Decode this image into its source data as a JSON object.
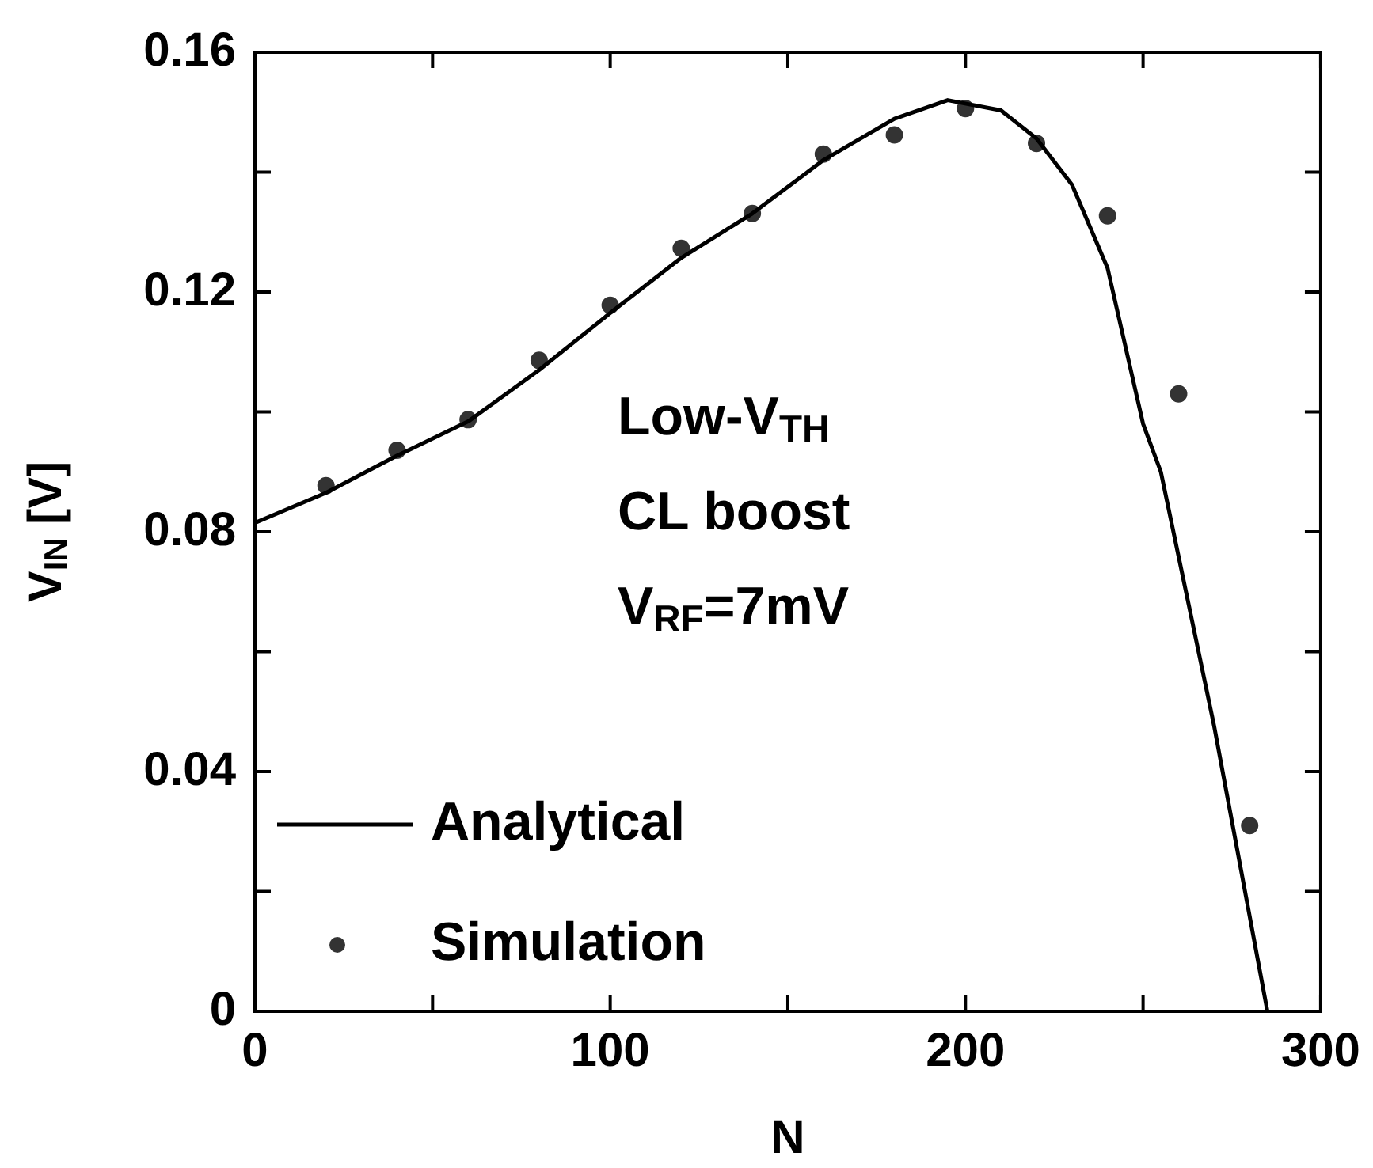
{
  "chart_data": {
    "type": "scatter",
    "xlabel": "N",
    "ylabel": "V$_{IN}$ [V]",
    "annotations": [
      "Low-V$_{TH}$",
      "CL boost",
      "V$_{RF}$=7mV"
    ],
    "xlim": [
      0,
      300
    ],
    "xticks": [
      0,
      {
        "value": 50,
        "label": null
      },
      100,
      {
        "value": 150,
        "label": null
      },
      200,
      {
        "value": 250,
        "label": null
      },
      300
    ],
    "ylim": [
      0,
      0.16
    ],
    "yticks": [
      0,
      {
        "value": 0.02,
        "label": null
      },
      0.04,
      {
        "value": 0.06,
        "label": null
      },
      0.08,
      {
        "value": 0.1,
        "label": null
      },
      0.12,
      {
        "value": 0.14,
        "label": null
      },
      0.16
    ],
    "grid": false,
    "legend": "bottom left",
    "series": [
      {
        "name": "Analytical",
        "type": "line",
        "color": "#000000",
        "marker": "none",
        "line_style": "solid",
        "x": [
          0,
          20,
          40,
          60,
          80,
          100,
          120,
          140,
          160,
          180,
          195,
          210,
          220,
          230,
          240,
          250,
          255,
          270,
          285
        ],
        "values": [
          0.0815,
          0.0865,
          0.0927,
          0.0984,
          0.107,
          0.1165,
          0.1257,
          0.1331,
          0.142,
          0.1489,
          0.152,
          0.1503,
          0.1456,
          0.1379,
          0.124,
          0.098,
          0.09,
          0.0476,
          0
        ]
      },
      {
        "name": "Simulation",
        "color": "#333333",
        "marker": "circle",
        "x": [
          20,
          40,
          60,
          80,
          100,
          120,
          140,
          160,
          180,
          200,
          220,
          240,
          260,
          280
        ],
        "values": [
          0.0877,
          0.0936,
          0.0987,
          0.1086,
          0.1178,
          0.1273,
          0.1331,
          0.143,
          0.1462,
          0.1506,
          0.1448,
          0.1327,
          0.103,
          0.031
        ]
      }
    ]
  }
}
